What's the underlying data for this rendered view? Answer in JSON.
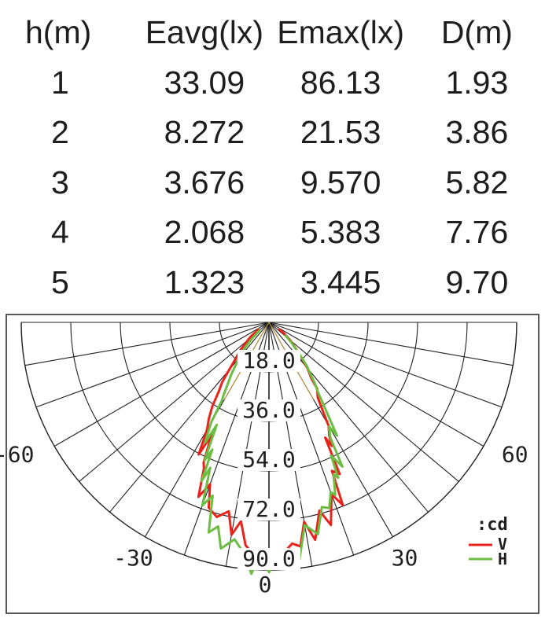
{
  "table": {
    "headers": [
      "h(m)",
      "Eavg(lx)",
      "Emax(lx)",
      "D(m)"
    ],
    "rows": [
      [
        "1",
        "33.09",
        "86.13",
        "1.93"
      ],
      [
        "2",
        "8.272",
        "21.53",
        "3.86"
      ],
      [
        "3",
        "3.676",
        "9.570",
        "5.82"
      ],
      [
        "4",
        "2.068",
        "5.383",
        "7.76"
      ],
      [
        "5",
        "1.323",
        "3.445",
        "9.70"
      ]
    ]
  },
  "chart_data": {
    "type": "polar",
    "unit_label": ":cd",
    "radial_ticks": [
      18.0,
      36.0,
      54.0,
      72.0,
      90.0
    ],
    "radial_tick_labels": [
      "18.0",
      "36.0",
      "54.0",
      "72.0",
      "90.0"
    ],
    "radial_max": 90,
    "angle_labels": [
      {
        "angle": -60,
        "text": "-60"
      },
      {
        "angle": -30,
        "text": "-30"
      },
      {
        "angle": 0,
        "text": "0"
      },
      {
        "angle": 30,
        "text": "30"
      },
      {
        "angle": 60,
        "text": "60"
      }
    ],
    "angle_range": [
      -90,
      90
    ],
    "angle_grid_step": 10,
    "beam_half_angle": 30,
    "series": [
      {
        "name": "V",
        "color": "#e8231c",
        "points": [
          [
            -56,
            4.2
          ],
          [
            -52,
            8.4
          ],
          [
            -50,
            9.8
          ],
          [
            -46,
            14.2
          ],
          [
            -42,
            18.6
          ],
          [
            -40,
            22.6
          ],
          [
            -38,
            27.6
          ],
          [
            -36,
            31.0
          ],
          [
            -34,
            36.8
          ],
          [
            -32,
            41.2
          ],
          [
            -30,
            45.0
          ],
          [
            -28,
            54.4
          ],
          [
            -27,
            45.8
          ],
          [
            -25,
            56.2
          ],
          [
            -24,
            58.0
          ],
          [
            -22,
            68.4
          ],
          [
            -20,
            62.6
          ],
          [
            -18,
            70.8
          ],
          [
            -15,
            73.2
          ],
          [
            -12,
            70.2
          ],
          [
            -10,
            78.4
          ],
          [
            -8,
            73.0
          ],
          [
            -6,
            81.4
          ],
          [
            -4,
            84.4
          ],
          [
            -2,
            87.4
          ],
          [
            0,
            89.8
          ],
          [
            2,
            88.2
          ],
          [
            4,
            83.4
          ],
          [
            6,
            80.8
          ],
          [
            8,
            82.2
          ],
          [
            10,
            73.6
          ],
          [
            12,
            80.8
          ],
          [
            15,
            70.8
          ],
          [
            17,
            77.0
          ],
          [
            20,
            66.4
          ],
          [
            22,
            71.6
          ],
          [
            23,
            58.6
          ],
          [
            25,
            60.8
          ],
          [
            26,
            46.6
          ],
          [
            27,
            50.4
          ],
          [
            28,
            46.6
          ],
          [
            30,
            43.4
          ],
          [
            31,
            38.8
          ],
          [
            33,
            32.6
          ],
          [
            36,
            29.8
          ],
          [
            37,
            25.8
          ],
          [
            40,
            21.8
          ],
          [
            42,
            18.4
          ],
          [
            45,
            14.4
          ],
          [
            50,
            10.0
          ],
          [
            54,
            6.6
          ],
          [
            56,
            4.2
          ]
        ]
      },
      {
        "name": "H",
        "color": "#6dbd45",
        "points": [
          [
            -50,
            4.2
          ],
          [
            -48,
            5.8
          ],
          [
            -46,
            8.6
          ],
          [
            -44,
            11.6
          ],
          [
            -42,
            15.4
          ],
          [
            -38,
            19.6
          ],
          [
            -36,
            23.2
          ],
          [
            -32,
            31.0
          ],
          [
            -31,
            33.4
          ],
          [
            -30,
            42.0
          ],
          [
            -28,
            49.4
          ],
          [
            -27,
            41.8
          ],
          [
            -25,
            55.4
          ],
          [
            -24,
            50.6
          ],
          [
            -23,
            62.6
          ],
          [
            -22,
            57.0
          ],
          [
            -20,
            70.8
          ],
          [
            -18,
            66.2
          ],
          [
            -16,
            79.4
          ],
          [
            -14,
            76.4
          ],
          [
            -12,
            84.0
          ],
          [
            -9,
            79.8
          ],
          [
            -6,
            84.8
          ],
          [
            -4,
            91.6
          ],
          [
            -2,
            83.2
          ],
          [
            0,
            90.8
          ],
          [
            2,
            85.8
          ],
          [
            4,
            89.8
          ],
          [
            5,
            84.8
          ],
          [
            7,
            88.6
          ],
          [
            10,
            74.8
          ],
          [
            13,
            79.0
          ],
          [
            16,
            69.8
          ],
          [
            18,
            71.0
          ],
          [
            20,
            65.6
          ],
          [
            21,
            67.2
          ],
          [
            23,
            60.0
          ],
          [
            24,
            61.8
          ],
          [
            25,
            53.4
          ],
          [
            27,
            58.8
          ],
          [
            28,
            47.6
          ],
          [
            30,
            43.6
          ],
          [
            31,
            48.0
          ],
          [
            33,
            37.8
          ],
          [
            35,
            31.2
          ],
          [
            37,
            27.6
          ],
          [
            39,
            23.6
          ],
          [
            41,
            21.0
          ],
          [
            43,
            17.4
          ],
          [
            45,
            14.2
          ],
          [
            48,
            11.0
          ],
          [
            52,
            7.4
          ]
        ]
      }
    ]
  }
}
